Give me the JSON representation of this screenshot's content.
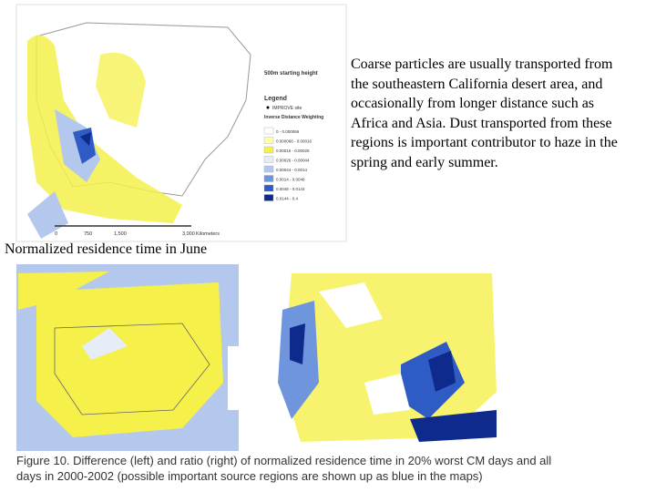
{
  "top_map": {
    "title": "500m starting height",
    "legend_title": "Legend",
    "site_label": "IMPROVE site",
    "method": "Inverse Distance Weighting",
    "legend": [
      {
        "label": "0 - 0.000066",
        "color": "#ffffff"
      },
      {
        "label": "0.000066 - 0.00016",
        "color": "#ffffb0"
      },
      {
        "label": "0.00016 - 0.00026",
        "color": "#f5f04a"
      },
      {
        "label": "0.00026 - 0.00044",
        "color": "#e6ecf8"
      },
      {
        "label": "0.00044 - 0.0014",
        "color": "#b4c8ee"
      },
      {
        "label": "0.0014 - 0.0048",
        "color": "#6f95dc"
      },
      {
        "label": "0.0048 - 0.0144",
        "color": "#2e5cc4"
      },
      {
        "label": "0.0144 - 0.4",
        "color": "#0d2a8c"
      }
    ],
    "scale": [
      "0",
      "750",
      "1,500",
      "3,000",
      "Kilometers"
    ]
  },
  "description": "Coarse particles are usually transported from the southeastern California desert area, and occasionally from longer distance such as Africa and Asia. Dust transported from these regions is important contributor to haze in the spring and early summer.",
  "top_caption": "Normalized residence time in June",
  "figure_caption": "Figure 10. Difference (left) and ratio (right) of normalized residence time in 20% worst CM days and all days in 2000-2002 (possible important source regions are shown up as blue in the maps)"
}
